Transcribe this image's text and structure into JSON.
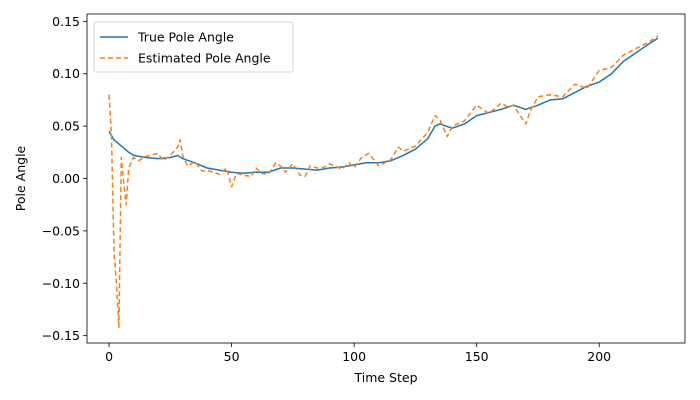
{
  "chart_data": {
    "type": "line",
    "title": "",
    "xlabel": "Time Step",
    "ylabel": "Pole Angle",
    "xlim": [
      -9,
      235
    ],
    "ylim": [
      -0.157,
      0.157
    ],
    "x_ticks": [
      0,
      50,
      100,
      150,
      200
    ],
    "x_tick_labels": [
      "0",
      "50",
      "100",
      "150",
      "200"
    ],
    "y_ticks": [
      -0.15,
      -0.1,
      -0.05,
      0.0,
      0.05,
      0.1,
      0.15
    ],
    "y_tick_labels": [
      "−0.15",
      "−0.10",
      "−0.05",
      "0.00",
      "0.05",
      "0.10",
      "0.15"
    ],
    "grid": false,
    "legend_position": "top-left",
    "series": [
      {
        "name": "True Pole Angle",
        "color": "#1f77b4",
        "style": "solid",
        "x": [
          0,
          2,
          4,
          6,
          8,
          10,
          15,
          20,
          25,
          28,
          30,
          35,
          40,
          45,
          50,
          55,
          60,
          65,
          70,
          75,
          80,
          85,
          90,
          95,
          100,
          105,
          110,
          115,
          120,
          125,
          130,
          133,
          135,
          140,
          145,
          150,
          155,
          160,
          165,
          170,
          175,
          180,
          185,
          190,
          195,
          200,
          205,
          210,
          215,
          220,
          224
        ],
        "y": [
          0.045,
          0.037,
          0.033,
          0.029,
          0.025,
          0.022,
          0.02,
          0.019,
          0.02,
          0.022,
          0.019,
          0.015,
          0.01,
          0.008,
          0.006,
          0.005,
          0.006,
          0.006,
          0.01,
          0.01,
          0.009,
          0.008,
          0.01,
          0.011,
          0.013,
          0.015,
          0.015,
          0.017,
          0.022,
          0.028,
          0.038,
          0.05,
          0.052,
          0.048,
          0.052,
          0.06,
          0.063,
          0.066,
          0.07,
          0.066,
          0.07,
          0.075,
          0.076,
          0.082,
          0.088,
          0.092,
          0.1,
          0.112,
          0.12,
          0.128,
          0.134
        ]
      },
      {
        "name": "Estimated Pole Angle",
        "color": "#ff7f0e",
        "style": "dashed",
        "x": [
          0,
          1,
          2,
          3,
          4,
          5,
          6,
          7,
          8,
          10,
          12,
          15,
          18,
          20,
          22,
          25,
          28,
          29,
          30,
          32,
          35,
          38,
          40,
          45,
          48,
          50,
          52,
          55,
          58,
          60,
          62,
          65,
          68,
          70,
          72,
          75,
          78,
          80,
          82,
          85,
          88,
          90,
          95,
          98,
          100,
          103,
          106,
          110,
          115,
          118,
          120,
          125,
          130,
          133,
          135,
          138,
          140,
          145,
          150,
          155,
          160,
          163,
          165,
          170,
          172,
          175,
          180,
          185,
          190,
          195,
          200,
          205,
          210,
          215,
          220,
          224
        ],
        "y": [
          0.08,
          0.04,
          -0.07,
          -0.1,
          -0.142,
          0.02,
          -0.005,
          -0.025,
          0.01,
          0.02,
          0.017,
          0.021,
          0.023,
          0.024,
          0.017,
          0.022,
          0.03,
          0.037,
          0.022,
          0.012,
          0.016,
          0.007,
          0.008,
          0.004,
          0.01,
          -0.008,
          0.005,
          0.003,
          0.002,
          0.01,
          0.005,
          0.004,
          0.015,
          0.012,
          0.006,
          0.014,
          0.003,
          0.002,
          0.012,
          0.01,
          0.011,
          0.014,
          0.009,
          0.015,
          0.01,
          0.02,
          0.024,
          0.012,
          0.018,
          0.03,
          0.026,
          0.031,
          0.044,
          0.06,
          0.056,
          0.04,
          0.05,
          0.055,
          0.07,
          0.062,
          0.072,
          0.068,
          0.07,
          0.052,
          0.065,
          0.078,
          0.08,
          0.078,
          0.09,
          0.086,
          0.103,
          0.106,
          0.118,
          0.124,
          0.13,
          0.136
        ]
      }
    ]
  }
}
